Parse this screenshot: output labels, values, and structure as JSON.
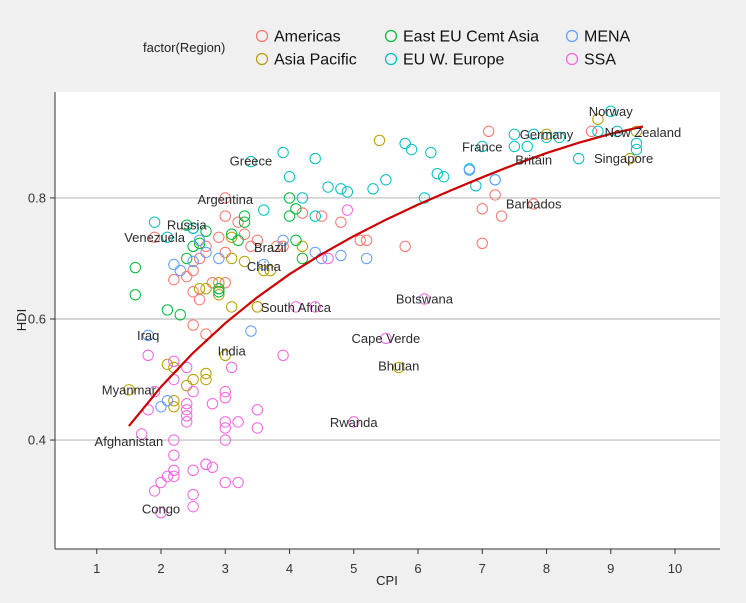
{
  "chart_data": {
    "type": "scatter",
    "xlabel": "CPI",
    "ylabel": "HDI",
    "xlim": [
      0.35,
      10.7
    ],
    "ylim": [
      0.22,
      0.975
    ],
    "x_ticks": [
      1,
      2,
      3,
      4,
      5,
      6,
      7,
      8,
      9,
      10
    ],
    "y_ticks": [
      0.4,
      0.6,
      0.8
    ],
    "y_tick_labels": [
      "0.4",
      "0.6",
      "0.8"
    ],
    "grid": "horizontal",
    "legend": {
      "title": "factor(Region)",
      "placement": "top",
      "entries": [
        {
          "label": "Americas",
          "color": "#F8766D"
        },
        {
          "label": "Asia Pacific",
          "color": "#B79F00"
        },
        {
          "label": "East EU Cemt Asia",
          "color": "#00BA38"
        },
        {
          "label": "EU W. Europe",
          "color": "#00BFC4"
        },
        {
          "label": "MENA",
          "color": "#619CFF"
        },
        {
          "label": "SSA",
          "color": "#F564E3"
        }
      ]
    },
    "series": [
      {
        "region": "Americas",
        "color": "#F8766D",
        "points": [
          [
            7.1,
            0.91
          ],
          [
            8.7,
            0.91
          ],
          [
            7.2,
            0.805
          ],
          [
            7.8,
            0.79
          ],
          [
            7.3,
            0.77
          ],
          [
            7.0,
            0.782
          ],
          [
            7.0,
            0.725
          ],
          [
            5.8,
            0.72
          ],
          [
            5.2,
            0.73
          ],
          [
            5.1,
            0.73
          ],
          [
            4.8,
            0.76
          ],
          [
            4.5,
            0.77
          ],
          [
            4.2,
            0.775
          ],
          [
            3.9,
            0.72
          ],
          [
            3.8,
            0.72
          ],
          [
            3.5,
            0.73
          ],
          [
            3.4,
            0.72
          ],
          [
            3.3,
            0.74
          ],
          [
            3.2,
            0.76
          ],
          [
            3.0,
            0.77
          ],
          [
            3.0,
            0.8
          ],
          [
            2.9,
            0.735
          ],
          [
            2.7,
            0.72
          ],
          [
            2.6,
            0.7
          ],
          [
            2.5,
            0.68
          ],
          [
            2.4,
            0.67
          ],
          [
            2.2,
            0.665
          ],
          [
            2.5,
            0.645
          ],
          [
            2.8,
            0.66
          ],
          [
            2.6,
            0.632
          ],
          [
            3.0,
            0.66
          ],
          [
            3.5,
            0.62
          ],
          [
            2.7,
            0.575
          ],
          [
            2.5,
            0.59
          ],
          [
            3.0,
            0.71
          ],
          [
            1.9,
            0.735
          ]
        ]
      },
      {
        "region": "Asia Pacific",
        "color": "#B79F00",
        "points": [
          [
            5.4,
            0.895
          ],
          [
            8.8,
            0.93
          ],
          [
            9.4,
            0.91
          ],
          [
            9.3,
            0.865
          ],
          [
            8.0,
            0.905
          ],
          [
            3.6,
            0.68
          ],
          [
            3.3,
            0.695
          ],
          [
            3.1,
            0.7
          ],
          [
            3.1,
            0.735
          ],
          [
            2.9,
            0.66
          ],
          [
            2.7,
            0.65
          ],
          [
            2.6,
            0.65
          ],
          [
            2.9,
            0.64
          ],
          [
            3.5,
            0.62
          ],
          [
            3.1,
            0.62
          ],
          [
            3.0,
            0.54
          ],
          [
            2.7,
            0.51
          ],
          [
            2.7,
            0.5
          ],
          [
            2.5,
            0.5
          ],
          [
            2.4,
            0.49
          ],
          [
            2.1,
            0.525
          ],
          [
            2.2,
            0.52
          ],
          [
            1.5,
            0.483
          ],
          [
            2.2,
            0.465
          ],
          [
            2.2,
            0.455
          ],
          [
            5.7,
            0.52
          ],
          [
            4.2,
            0.72
          ],
          [
            3.7,
            0.68
          ]
        ]
      },
      {
        "region": "East EU Cemt Asia",
        "color": "#00BA38",
        "points": [
          [
            4.0,
            0.8
          ],
          [
            4.1,
            0.782
          ],
          [
            4.0,
            0.77
          ],
          [
            4.1,
            0.73
          ],
          [
            4.2,
            0.7
          ],
          [
            3.3,
            0.77
          ],
          [
            3.3,
            0.76
          ],
          [
            3.1,
            0.74
          ],
          [
            3.2,
            0.73
          ],
          [
            2.4,
            0.755
          ],
          [
            2.7,
            0.745
          ],
          [
            2.6,
            0.725
          ],
          [
            2.5,
            0.72
          ],
          [
            2.4,
            0.7
          ],
          [
            1.6,
            0.685
          ],
          [
            1.6,
            0.64
          ],
          [
            2.1,
            0.615
          ],
          [
            2.3,
            0.607
          ],
          [
            2.9,
            0.65
          ],
          [
            2.9,
            0.645
          ]
        ]
      },
      {
        "region": "EU W. Europe",
        "color": "#00BFC4",
        "points": [
          [
            9.0,
            0.943
          ],
          [
            8.8,
            0.91
          ],
          [
            9.1,
            0.91
          ],
          [
            9.4,
            0.89
          ],
          [
            9.4,
            0.88
          ],
          [
            8.5,
            0.865
          ],
          [
            8.0,
            0.9
          ],
          [
            8.2,
            0.9
          ],
          [
            7.5,
            0.905
          ],
          [
            7.8,
            0.905
          ],
          [
            7.7,
            0.885
          ],
          [
            7.5,
            0.885
          ],
          [
            7.0,
            0.885
          ],
          [
            6.8,
            0.848
          ],
          [
            7.2,
            0.83
          ],
          [
            6.9,
            0.82
          ],
          [
            6.1,
            0.8
          ],
          [
            6.4,
            0.835
          ],
          [
            6.3,
            0.84
          ],
          [
            5.9,
            0.88
          ],
          [
            5.8,
            0.89
          ],
          [
            6.2,
            0.875
          ],
          [
            4.9,
            0.81
          ],
          [
            4.8,
            0.815
          ],
          [
            5.5,
            0.83
          ],
          [
            5.3,
            0.815
          ],
          [
            4.6,
            0.818
          ],
          [
            4.4,
            0.77
          ],
          [
            4.2,
            0.8
          ],
          [
            4.0,
            0.835
          ],
          [
            3.9,
            0.875
          ],
          [
            4.4,
            0.865
          ],
          [
            3.6,
            0.78
          ],
          [
            3.4,
            0.86
          ],
          [
            1.9,
            0.76
          ],
          [
            2.5,
            0.75
          ],
          [
            2.1,
            0.735
          ],
          [
            2.5,
            0.75
          ]
        ]
      },
      {
        "region": "MENA",
        "color": "#619CFF",
        "points": [
          [
            7.2,
            0.83
          ],
          [
            6.8,
            0.846
          ],
          [
            5.2,
            0.7
          ],
          [
            4.8,
            0.705
          ],
          [
            4.5,
            0.7
          ],
          [
            4.4,
            0.71
          ],
          [
            3.9,
            0.73
          ],
          [
            3.6,
            0.69
          ],
          [
            3.4,
            0.58
          ],
          [
            2.9,
            0.7
          ],
          [
            2.7,
            0.71
          ],
          [
            2.6,
            0.73
          ],
          [
            2.5,
            0.695
          ],
          [
            2.3,
            0.68
          ],
          [
            2.2,
            0.69
          ],
          [
            2.0,
            0.455
          ],
          [
            1.8,
            0.573
          ],
          [
            2.1,
            0.465
          ]
        ]
      },
      {
        "region": "SSA",
        "color": "#F564E3",
        "points": [
          [
            6.1,
            0.633
          ],
          [
            5.5,
            0.568
          ],
          [
            4.9,
            0.78
          ],
          [
            4.6,
            0.7
          ],
          [
            4.4,
            0.62
          ],
          [
            4.1,
            0.62
          ],
          [
            3.9,
            0.54
          ],
          [
            3.1,
            0.52
          ],
          [
            3.0,
            0.48
          ],
          [
            3.0,
            0.47
          ],
          [
            3.0,
            0.43
          ],
          [
            3.0,
            0.42
          ],
          [
            3.0,
            0.4
          ],
          [
            3.0,
            0.33
          ],
          [
            3.2,
            0.33
          ],
          [
            3.2,
            0.43
          ],
          [
            3.5,
            0.45
          ],
          [
            3.5,
            0.42
          ],
          [
            2.8,
            0.46
          ],
          [
            2.7,
            0.36
          ],
          [
            2.7,
            0.36
          ],
          [
            2.8,
            0.355
          ],
          [
            2.5,
            0.35
          ],
          [
            2.5,
            0.31
          ],
          [
            2.5,
            0.29
          ],
          [
            2.4,
            0.46
          ],
          [
            2.4,
            0.45
          ],
          [
            2.4,
            0.44
          ],
          [
            2.4,
            0.43
          ],
          [
            2.2,
            0.4
          ],
          [
            2.2,
            0.375
          ],
          [
            2.2,
            0.35
          ],
          [
            2.2,
            0.34
          ],
          [
            2.1,
            0.34
          ],
          [
            2.0,
            0.33
          ],
          [
            2.0,
            0.28
          ],
          [
            1.9,
            0.316
          ],
          [
            1.8,
            0.54
          ],
          [
            2.2,
            0.53
          ],
          [
            2.2,
            0.5
          ],
          [
            2.5,
            0.48
          ],
          [
            2.4,
            0.52
          ],
          [
            1.9,
            0.48
          ],
          [
            1.7,
            0.41
          ],
          [
            1.8,
            0.45
          ],
          [
            5.0,
            0.43
          ]
        ]
      }
    ],
    "trend_line": {
      "color": "#CC0000",
      "points": [
        [
          1.5,
          0.423
        ],
        [
          2.0,
          0.488
        ],
        [
          2.5,
          0.544
        ],
        [
          3.0,
          0.593
        ],
        [
          3.5,
          0.636
        ],
        [
          4.0,
          0.674
        ],
        [
          4.5,
          0.707
        ],
        [
          5.0,
          0.737
        ],
        [
          5.5,
          0.764
        ],
        [
          6.0,
          0.789
        ],
        [
          6.5,
          0.812
        ],
        [
          7.0,
          0.834
        ],
        [
          7.5,
          0.855
        ],
        [
          8.0,
          0.874
        ],
        [
          8.5,
          0.891
        ],
        [
          9.0,
          0.906
        ],
        [
          9.5,
          0.918
        ]
      ]
    },
    "annotations": [
      {
        "text": "Norway",
        "x": 9.0,
        "y": 0.943
      },
      {
        "text": "New Zealand",
        "x": 9.5,
        "y": 0.908
      },
      {
        "text": "Germany",
        "x": 8.0,
        "y": 0.905
      },
      {
        "text": "France",
        "x": 7.0,
        "y": 0.884
      },
      {
        "text": "Britain",
        "x": 7.8,
        "y": 0.863
      },
      {
        "text": "Singapore",
        "x": 9.2,
        "y": 0.865
      },
      {
        "text": "Greece",
        "x": 3.4,
        "y": 0.861
      },
      {
        "text": "Barbados",
        "x": 7.8,
        "y": 0.79
      },
      {
        "text": "Argentina",
        "x": 3.0,
        "y": 0.797
      },
      {
        "text": "Russia",
        "x": 2.4,
        "y": 0.755
      },
      {
        "text": "Venezuela",
        "x": 1.9,
        "y": 0.735
      },
      {
        "text": "Brazil",
        "x": 3.7,
        "y": 0.718
      },
      {
        "text": "China",
        "x": 3.6,
        "y": 0.687
      },
      {
        "text": "South Africa",
        "x": 4.1,
        "y": 0.619
      },
      {
        "text": "Botswana",
        "x": 6.1,
        "y": 0.633
      },
      {
        "text": "Iraq",
        "x": 1.8,
        "y": 0.573
      },
      {
        "text": "India",
        "x": 3.1,
        "y": 0.547
      },
      {
        "text": "Cape Verde",
        "x": 5.5,
        "y": 0.568
      },
      {
        "text": "Bhutan",
        "x": 5.7,
        "y": 0.522
      },
      {
        "text": "Myanmar",
        "x": 1.5,
        "y": 0.483
      },
      {
        "text": "Rwanda",
        "x": 5.0,
        "y": 0.429
      },
      {
        "text": "Afghanistan",
        "x": 1.5,
        "y": 0.398
      },
      {
        "text": "Congo",
        "x": 2.0,
        "y": 0.286
      }
    ]
  }
}
